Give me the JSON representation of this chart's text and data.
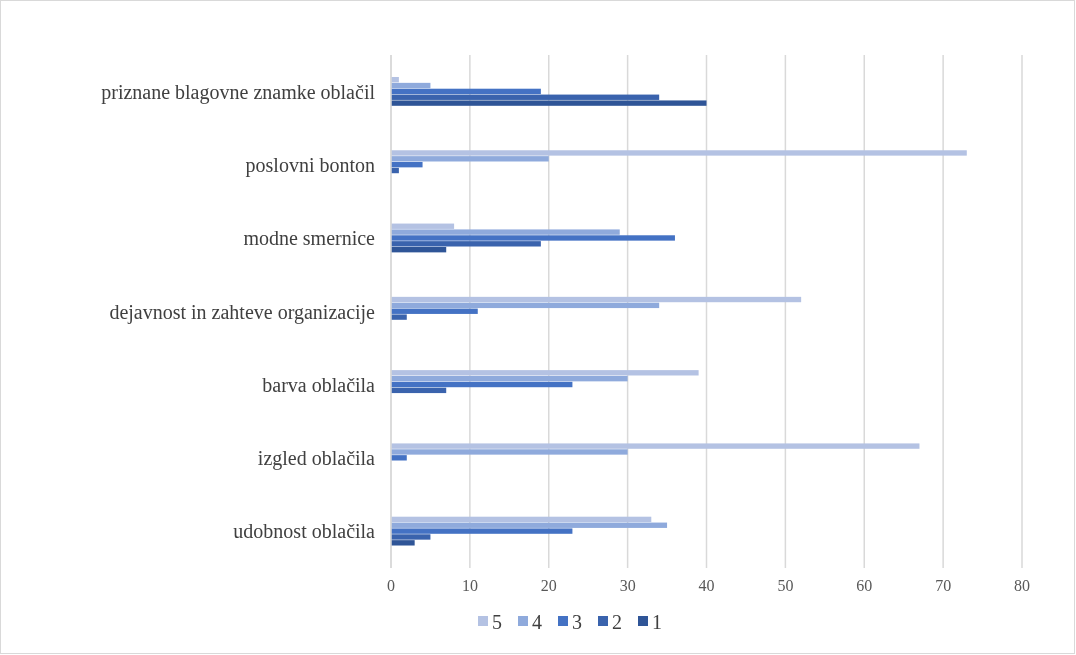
{
  "chart_data": {
    "type": "bar",
    "orientation": "horizontal",
    "categories": [
      "priznane blagovne znamke oblačil",
      "poslovni bonton",
      "modne smernice",
      "dejavnost in zahteve organizacije",
      "barva oblačila",
      "izgled oblačila",
      "udobnost oblačila"
    ],
    "series": [
      {
        "name": "5",
        "color": "#b4c2e3",
        "values": [
          1,
          73,
          8,
          52,
          39,
          67,
          33
        ]
      },
      {
        "name": "4",
        "color": "#8faadc",
        "values": [
          5,
          20,
          29,
          34,
          30,
          30,
          35
        ]
      },
      {
        "name": "3",
        "color": "#4472c4",
        "values": [
          19,
          4,
          36,
          11,
          23,
          2,
          23
        ]
      },
      {
        "name": "2",
        "color": "#3a63ad",
        "values": [
          34,
          1,
          19,
          2,
          7,
          0,
          5
        ]
      },
      {
        "name": "1",
        "color": "#2f5597",
        "values": [
          40,
          0,
          7,
          0,
          0,
          0,
          3
        ]
      }
    ],
    "xlim": [
      0,
      80
    ],
    "xticks": [
      0,
      10,
      20,
      30,
      40,
      50,
      60,
      70,
      80
    ],
    "grid": "x",
    "legend": "bottom"
  }
}
